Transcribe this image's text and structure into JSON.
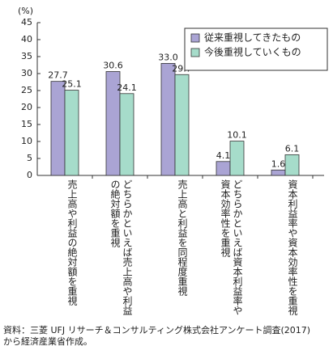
{
  "chart_data": {
    "type": "bar",
    "y_label": "(%)",
    "categories": [
      "売上高や利益の絶対額を重視",
      "どちらかといえば売上高や利益の絶対額を重視",
      "売上高と利益を同程度重視",
      "どちらかといえば資本利益率や資本効率性を重視",
      "資本利益率や資本効率性を重視"
    ],
    "series": [
      {
        "name": "従来重視してきたもの",
        "color": "#aaa4d4",
        "values": [
          27.7,
          30.6,
          33.0,
          4.1,
          1.6
        ],
        "value_labels": [
          "27.7",
          "30.6",
          "33.0",
          "4.1",
          "1.6"
        ]
      },
      {
        "name": "今後重視していくもの",
        "color": "#a6dcca",
        "values": [
          25.1,
          24.1,
          29.7,
          10.1,
          6.1
        ]
      }
    ],
    "ylim": [
      0,
      45
    ],
    "yticks": [
      0,
      5,
      10,
      15,
      20,
      25,
      30,
      35,
      40,
      45
    ],
    "grid": false,
    "legend": "top-right",
    "notes": [
      "資料：三菱 UFJ リサーチ＆コンサルティング株式会社アンケート調査(2017)",
      "から経済産業省作成。"
    ]
  }
}
